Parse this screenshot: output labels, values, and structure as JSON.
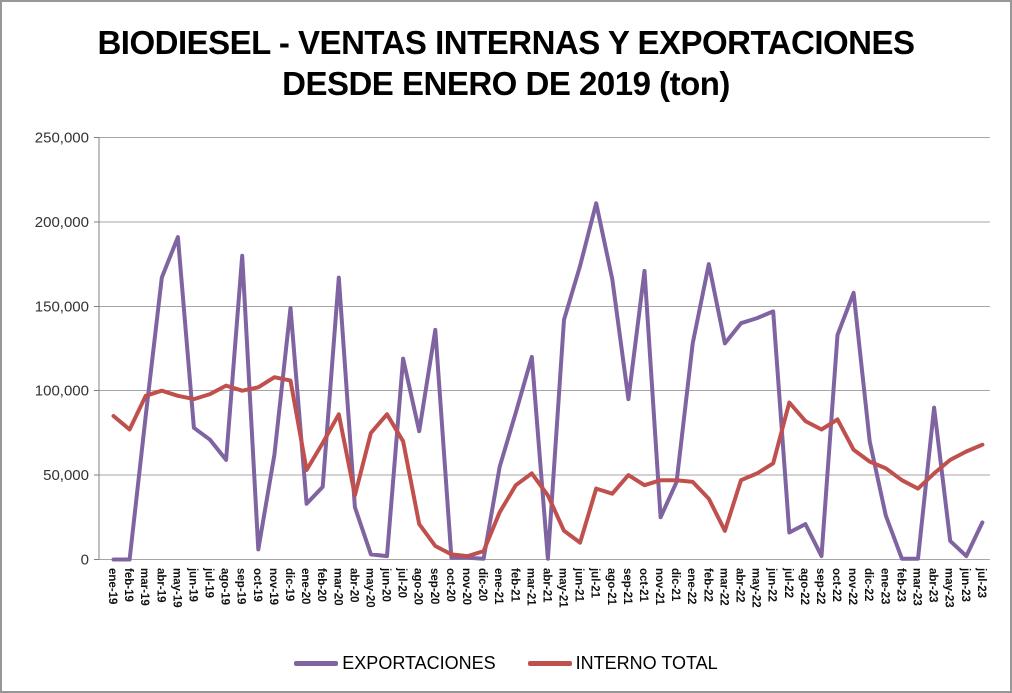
{
  "chart_data": {
    "type": "line",
    "title_line1": "BIODIESEL - VENTAS INTERNAS Y EXPORTACIONES",
    "title_line2": "DESDE ENERO DE 2019 (ton)",
    "categories": [
      "ene-19",
      "feb-19",
      "mar-19",
      "abr-19",
      "may-19",
      "jun-19",
      "jul-19",
      "ago-19",
      "sep-19",
      "oct-19",
      "nov-19",
      "dic-19",
      "ene-20",
      "feb-20",
      "mar-20",
      "abr-20",
      "may-20",
      "jun-20",
      "jul-20",
      "ago-20",
      "sep-20",
      "oct-20",
      "nov-20",
      "dic-20",
      "ene-21",
      "feb-21",
      "mar-21",
      "abr-21",
      "may-21",
      "jun-21",
      "jul-21",
      "ago-21",
      "sep-21",
      "oct-21",
      "nov-21",
      "dic-21",
      "ene-22",
      "feb-22",
      "mar-22",
      "abr-22",
      "may-22",
      "jun-22",
      "jul-22",
      "ago-22",
      "sep-22",
      "oct-22",
      "nov-22",
      "dic-22",
      "ene-23",
      "feb-23",
      "mar-23",
      "abr-23",
      "may-23",
      "jun-23",
      "jul-23"
    ],
    "series": [
      {
        "name": "EXPORTACIONES",
        "color": "#8064A2",
        "values": [
          0,
          0,
          85000,
          167000,
          191000,
          78000,
          71000,
          59000,
          180000,
          6000,
          62000,
          149000,
          33000,
          43000,
          167000,
          31000,
          3000,
          2000,
          119000,
          76000,
          136000,
          1000,
          1000,
          500,
          55000,
          87000,
          120000,
          500,
          142000,
          174000,
          211000,
          166000,
          95000,
          171000,
          25000,
          46000,
          128000,
          175000,
          128000,
          140000,
          143000,
          147000,
          16000,
          21000,
          2000,
          133000,
          158000,
          70000,
          26000,
          500,
          500,
          90000,
          11000,
          2000,
          22000
        ]
      },
      {
        "name": "INTERNO TOTAL",
        "color": "#C0504D",
        "values": [
          85000,
          77000,
          97000,
          100000,
          97000,
          95000,
          98000,
          103000,
          100000,
          102000,
          108000,
          106000,
          53000,
          69000,
          86000,
          38000,
          75000,
          86000,
          70000,
          21000,
          8000,
          3000,
          2000,
          5000,
          28000,
          44000,
          51000,
          38000,
          17000,
          10000,
          42000,
          39000,
          50000,
          44000,
          47000,
          47000,
          46000,
          36000,
          17000,
          47000,
          51000,
          57000,
          93000,
          82000,
          77000,
          83000,
          65000,
          58000,
          54000,
          47000,
          42000,
          51000,
          59000,
          64000,
          68000
        ]
      }
    ],
    "y_axis": {
      "min": 0,
      "max": 250000,
      "step": 50000,
      "tick_labels": [
        "0",
        "50,000",
        "100,000",
        "150,000",
        "200,000",
        "250,000"
      ]
    },
    "grid": true,
    "legend_position": "bottom",
    "colors": {
      "gridline": "#a6a6a6",
      "axis": "#808080",
      "background": "#ffffff"
    }
  }
}
